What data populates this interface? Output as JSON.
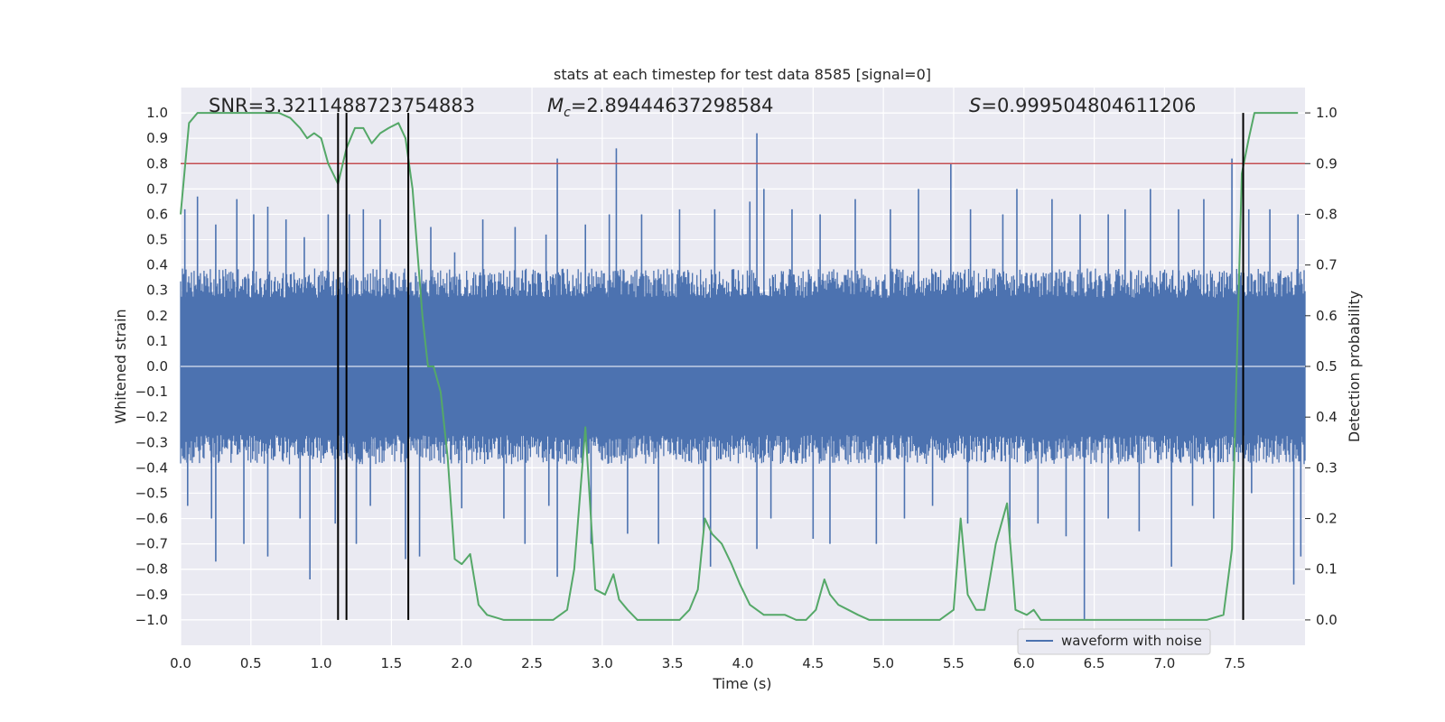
{
  "chart_data": {
    "type": "line",
    "title": "stats at each timestep for test data 8585 [signal=0]",
    "xlabel": "Time (s)",
    "ylabel_left": "Whitened strain",
    "ylabel_right": "Detection probability",
    "xlim": [
      0,
      8
    ],
    "ylim_left": [
      -1.1,
      1.1
    ],
    "ylim_right": [
      -0.05,
      1.05
    ],
    "grid": true,
    "legend_placement": "lower-right",
    "x_ticks": [
      "0.0",
      "0.5",
      "1.0",
      "1.5",
      "2.0",
      "2.5",
      "3.0",
      "3.5",
      "4.0",
      "4.5",
      "5.0",
      "5.5",
      "6.0",
      "6.5",
      "7.0",
      "7.5"
    ],
    "y_ticks_left": [
      "1.0",
      "0.9",
      "0.8",
      "0.7",
      "0.6",
      "0.5",
      "0.4",
      "0.3",
      "0.2",
      "0.1",
      "0.0",
      "−0.1",
      "−0.2",
      "−0.3",
      "−0.4",
      "−0.5",
      "−0.6",
      "−0.7",
      "−0.8",
      "−0.9",
      "−1.0"
    ],
    "y_ticks_right": [
      "1.0",
      "0.9",
      "0.8",
      "0.7",
      "0.6",
      "0.5",
      "0.4",
      "0.3",
      "0.2",
      "0.1",
      "0.0"
    ],
    "annotations": {
      "snr_label": "SNR=3.3211488723754883",
      "mc_prefix": "M",
      "mc_sub": "c",
      "mc_value": "=2.89444637298584",
      "s_prefix": "S",
      "s_value": "=0.999504804611206"
    },
    "threshold": {
      "y_right": 0.9,
      "color": "#c44e52"
    },
    "vertical_lines_x": [
      1.12,
      1.18,
      1.62,
      7.56
    ],
    "series": [
      {
        "name": "waveform with noise",
        "axis": "left",
        "color": "#4c72b0",
        "note_envelope_abs_typical": 0.33,
        "upper_spikes": [
          [
            0.03,
            0.62
          ],
          [
            0.12,
            0.67
          ],
          [
            0.25,
            0.56
          ],
          [
            0.4,
            0.66
          ],
          [
            0.52,
            0.6
          ],
          [
            0.62,
            0.63
          ],
          [
            0.75,
            0.58
          ],
          [
            0.88,
            0.51
          ],
          [
            1.05,
            0.6
          ],
          [
            1.2,
            0.6
          ],
          [
            1.3,
            0.62
          ],
          [
            1.42,
            0.58
          ],
          [
            1.62,
            0.62
          ],
          [
            1.78,
            0.55
          ],
          [
            1.95,
            0.45
          ],
          [
            2.15,
            0.58
          ],
          [
            2.38,
            0.55
          ],
          [
            2.6,
            0.52
          ],
          [
            2.68,
            0.82
          ],
          [
            2.88,
            0.56
          ],
          [
            3.05,
            0.6
          ],
          [
            3.1,
            0.86
          ],
          [
            3.28,
            0.6
          ],
          [
            3.55,
            0.62
          ],
          [
            3.8,
            0.62
          ],
          [
            4.05,
            0.65
          ],
          [
            4.1,
            0.92
          ],
          [
            4.15,
            0.7
          ],
          [
            4.35,
            0.62
          ],
          [
            4.55,
            0.6
          ],
          [
            4.8,
            0.66
          ],
          [
            5.05,
            0.62
          ],
          [
            5.25,
            0.7
          ],
          [
            5.48,
            0.8
          ],
          [
            5.62,
            0.62
          ],
          [
            5.85,
            0.6
          ],
          [
            5.95,
            0.7
          ],
          [
            6.2,
            0.66
          ],
          [
            6.4,
            0.6
          ],
          [
            6.6,
            0.6
          ],
          [
            6.72,
            0.62
          ],
          [
            6.9,
            0.7
          ],
          [
            7.1,
            0.62
          ],
          [
            7.28,
            0.66
          ],
          [
            7.48,
            0.82
          ],
          [
            7.6,
            0.62
          ],
          [
            7.75,
            0.62
          ],
          [
            7.95,
            0.6
          ]
        ],
        "lower_spikes": [
          [
            0.05,
            -0.55
          ],
          [
            0.22,
            -0.6
          ],
          [
            0.25,
            -0.77
          ],
          [
            0.45,
            -0.7
          ],
          [
            0.62,
            -0.75
          ],
          [
            0.85,
            -0.6
          ],
          [
            0.92,
            -0.84
          ],
          [
            1.1,
            -0.62
          ],
          [
            1.25,
            -0.7
          ],
          [
            1.35,
            -0.55
          ],
          [
            1.6,
            -0.76
          ],
          [
            1.7,
            -0.75
          ],
          [
            2.0,
            -0.56
          ],
          [
            2.3,
            -0.6
          ],
          [
            2.45,
            -0.7
          ],
          [
            2.62,
            -0.55
          ],
          [
            2.68,
            -0.83
          ],
          [
            2.92,
            -0.7
          ],
          [
            3.18,
            -0.66
          ],
          [
            3.4,
            -0.7
          ],
          [
            3.72,
            -0.65
          ],
          [
            3.77,
            -0.79
          ],
          [
            4.1,
            -0.72
          ],
          [
            4.2,
            -0.6
          ],
          [
            4.5,
            -0.68
          ],
          [
            4.62,
            -0.7
          ],
          [
            4.95,
            -0.7
          ],
          [
            5.15,
            -0.6
          ],
          [
            5.35,
            -0.55
          ],
          [
            5.6,
            -0.62
          ],
          [
            5.9,
            -0.7
          ],
          [
            6.1,
            -0.62
          ],
          [
            6.3,
            -0.67
          ],
          [
            6.43,
            -1.0
          ],
          [
            6.6,
            -0.6
          ],
          [
            6.82,
            -0.65
          ],
          [
            7.05,
            -0.79
          ],
          [
            7.2,
            -0.55
          ],
          [
            7.35,
            -0.6
          ],
          [
            7.62,
            -0.5
          ],
          [
            7.92,
            -0.86
          ],
          [
            7.97,
            -0.75
          ]
        ]
      },
      {
        "name": "",
        "axis": "right",
        "color": "#55a868",
        "x": [
          0,
          0.06,
          0.12,
          0.2,
          0.3,
          0.4,
          0.5,
          0.6,
          0.7,
          0.78,
          0.85,
          0.9,
          0.95,
          1.0,
          1.05,
          1.12,
          1.18,
          1.24,
          1.3,
          1.36,
          1.42,
          1.48,
          1.55,
          1.6,
          1.65,
          1.72,
          1.76,
          1.8,
          1.85,
          1.9,
          1.95,
          2.0,
          2.06,
          2.12,
          2.18,
          2.3,
          2.5,
          2.65,
          2.75,
          2.8,
          2.88,
          2.95,
          3.02,
          3.08,
          3.12,
          3.18,
          3.25,
          3.35,
          3.45,
          3.55,
          3.62,
          3.68,
          3.73,
          3.78,
          3.85,
          3.92,
          3.98,
          4.05,
          4.15,
          4.22,
          4.3,
          4.38,
          4.45,
          4.52,
          4.58,
          4.62,
          4.68,
          4.75,
          4.82,
          4.9,
          5.0,
          5.2,
          5.4,
          5.5,
          5.55,
          5.6,
          5.66,
          5.72,
          5.8,
          5.88,
          5.94,
          6.02,
          6.07,
          6.12,
          6.2,
          6.3,
          6.5,
          6.8,
          7.0,
          7.3,
          7.42,
          7.48,
          7.55,
          7.6,
          7.64,
          7.7,
          7.8,
          7.95
        ],
        "y": [
          0.8,
          0.98,
          1.0,
          1.0,
          1.0,
          1.0,
          1.0,
          1.0,
          1.0,
          0.99,
          0.97,
          0.95,
          0.96,
          0.95,
          0.9,
          0.86,
          0.93,
          0.97,
          0.97,
          0.94,
          0.96,
          0.97,
          0.98,
          0.95,
          0.85,
          0.6,
          0.5,
          0.5,
          0.45,
          0.32,
          0.12,
          0.11,
          0.13,
          0.03,
          0.01,
          0.0,
          0.0,
          0.0,
          0.02,
          0.1,
          0.38,
          0.06,
          0.05,
          0.09,
          0.04,
          0.02,
          0.0,
          0.0,
          0.0,
          0.0,
          0.02,
          0.06,
          0.2,
          0.17,
          0.15,
          0.11,
          0.07,
          0.03,
          0.01,
          0.01,
          0.01,
          0.0,
          0.0,
          0.02,
          0.08,
          0.05,
          0.03,
          0.02,
          0.01,
          0.0,
          0.0,
          0.0,
          0.0,
          0.02,
          0.2,
          0.05,
          0.02,
          0.02,
          0.15,
          0.23,
          0.02,
          0.01,
          0.02,
          0.0,
          0.0,
          0.0,
          0.0,
          0.0,
          0.0,
          0.0,
          0.01,
          0.14,
          0.88,
          0.95,
          1.0,
          1.0,
          1.0,
          1.0
        ]
      }
    ]
  }
}
